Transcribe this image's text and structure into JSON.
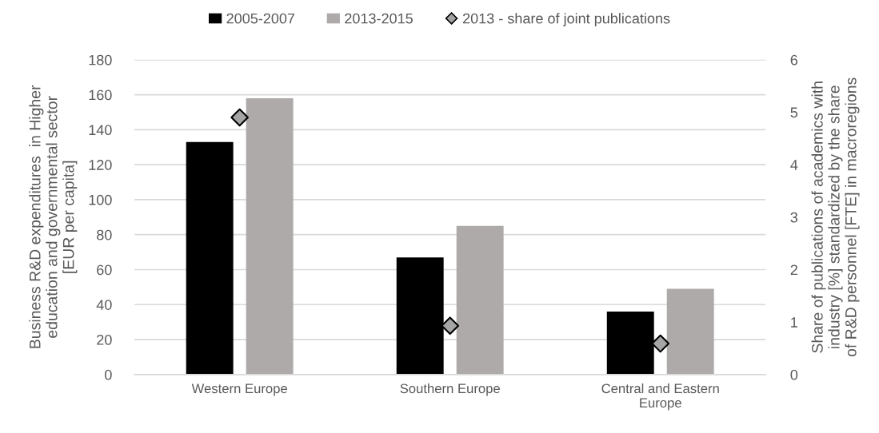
{
  "chart_data": {
    "type": "bar",
    "categories": [
      "Western Europe",
      "Southern Europe",
      "Central and Eastern\nEurope"
    ],
    "series": [
      {
        "name": "2005-2007",
        "color": "#000000",
        "values": [
          133,
          67,
          36
        ]
      },
      {
        "name": "2013-2015",
        "color": "#aeaaaa",
        "values": [
          158,
          85,
          49
        ]
      },
      {
        "name": "2013 - share of joint publications",
        "type": "scatter",
        "axis": "y2",
        "marker": "diamond",
        "color": "#a5a5a5",
        "values": [
          4.9,
          0.93,
          0.59
        ]
      }
    ],
    "ylabel": "Business R&D expenditures  in Higher\neducation and governmental sector\n[EUR per capita]",
    "y2label": "Share of publications of academics with\nindustry [%] standardized by the share\nof R&D personnel [FTE] in macroregions",
    "ylim": [
      0,
      180
    ],
    "yticks": [
      0,
      20,
      40,
      60,
      80,
      100,
      120,
      140,
      160,
      180
    ],
    "y2lim": [
      0,
      6
    ],
    "y2ticks": [
      0,
      1,
      2,
      3,
      4,
      5,
      6
    ],
    "grid": "y",
    "legend": "top"
  }
}
